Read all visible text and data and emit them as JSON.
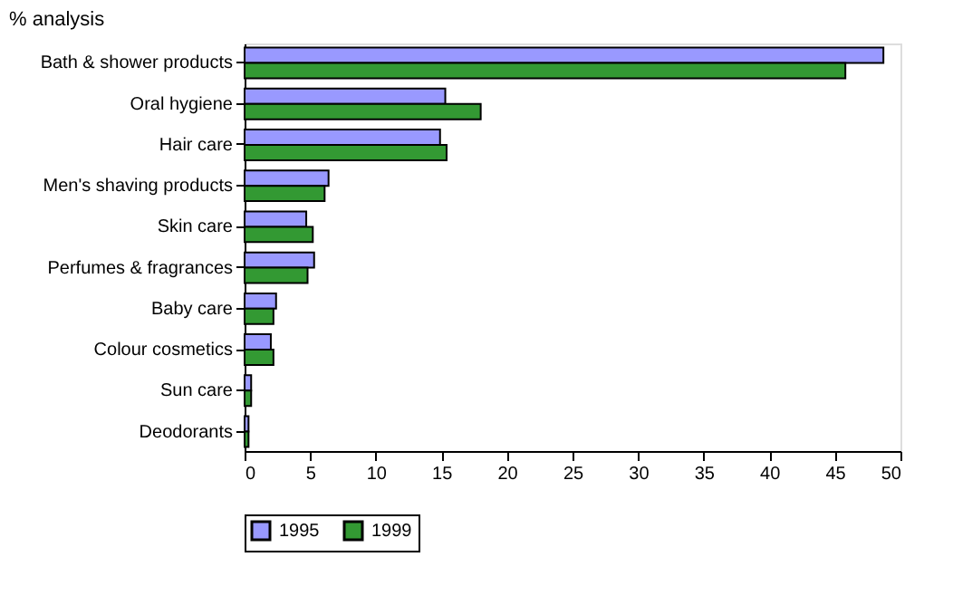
{
  "chart_data": {
    "type": "bar",
    "orientation": "horizontal",
    "title": "% analysis",
    "categories": [
      "Bath & shower products",
      "Oral hygiene",
      "Hair care",
      "Men's shaving products",
      "Skin care",
      "Perfumes & fragrances",
      "Baby care",
      "Colour cosmetics",
      "Sun care",
      "Deodorants"
    ],
    "series": [
      {
        "name": "1995",
        "color": "#9999ff",
        "values": [
          48.7,
          15.3,
          14.9,
          6.4,
          4.7,
          5.3,
          2.4,
          2.0,
          0.5,
          0.3
        ]
      },
      {
        "name": "1999",
        "color": "#339933",
        "values": [
          45.8,
          18.0,
          15.4,
          6.1,
          5.2,
          4.8,
          2.2,
          2.2,
          0.5,
          0.3
        ]
      }
    ],
    "xlim": [
      0,
      50
    ],
    "xticks": [
      0,
      5,
      10,
      15,
      20,
      25,
      30,
      35,
      40,
      45,
      50
    ],
    "grid": false,
    "legend": "bottom"
  }
}
